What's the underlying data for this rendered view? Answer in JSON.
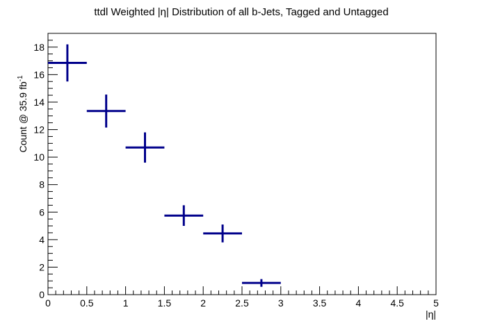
{
  "chart_data": {
    "type": "scatter",
    "title": "ttdl Weighted |η| Distribution of all b-Jets, Tagged and Untagged",
    "xlabel": "|η|",
    "ylabel": "Count @ 35.9 fb",
    "ylabel_superscript": "-1",
    "xlim": [
      0,
      5
    ],
    "ylim": [
      0,
      19
    ],
    "x_ticks": [
      "0",
      "0.5",
      "1",
      "1.5",
      "2",
      "2.5",
      "3",
      "3.5",
      "4",
      "4.5",
      "5"
    ],
    "y_ticks": [
      "0",
      "2",
      "4",
      "6",
      "8",
      "10",
      "12",
      "14",
      "16",
      "18"
    ],
    "grid": false,
    "series": [
      {
        "color": "#00008b",
        "x": [
          0.25,
          0.75,
          1.25,
          1.75,
          2.25,
          2.75
        ],
        "x_err": [
          0.25,
          0.25,
          0.25,
          0.25,
          0.25,
          0.25
        ],
        "y": [
          16.85,
          13.35,
          10.7,
          5.75,
          4.45,
          0.85
        ],
        "y_err": [
          1.35,
          1.2,
          1.1,
          0.75,
          0.65,
          0.28
        ]
      }
    ]
  }
}
